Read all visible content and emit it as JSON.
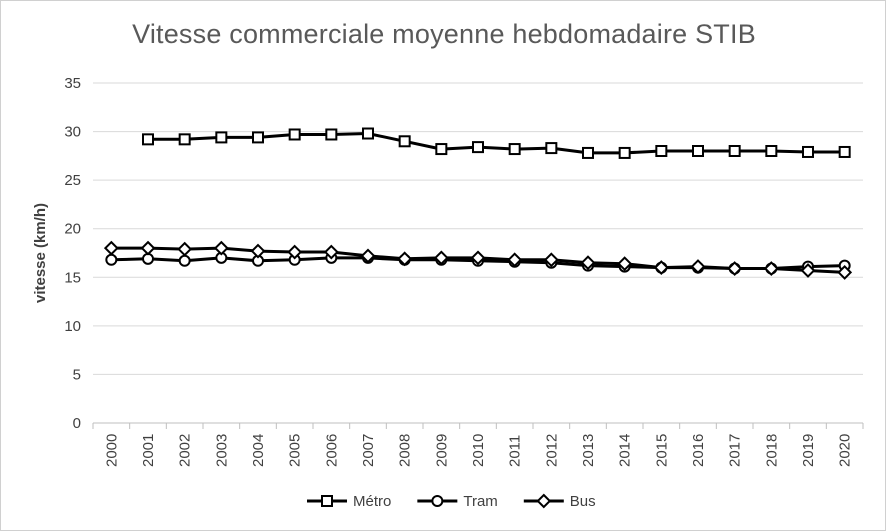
{
  "chart_data": {
    "type": "line",
    "title": "Vitesse commerciale moyenne hebdomadaire STIB",
    "xlabel": "",
    "ylabel": "vitesse (km/h)",
    "categories": [
      "2000",
      "2001",
      "2002",
      "2003",
      "2004",
      "2005",
      "2006",
      "2007",
      "2008",
      "2009",
      "2010",
      "2011",
      "2012",
      "2013",
      "2014",
      "2015",
      "2016",
      "2017",
      "2018",
      "2019",
      "2020"
    ],
    "ylim": [
      0,
      35
    ],
    "yticks": [
      0,
      5,
      10,
      15,
      20,
      25,
      30,
      35
    ],
    "grid": true,
    "legend_position": "bottom",
    "series": [
      {
        "name": "Métro",
        "marker": "square",
        "color": "#000000",
        "values": [
          null,
          29.2,
          29.2,
          29.4,
          29.4,
          29.7,
          29.7,
          29.8,
          29.0,
          28.2,
          28.4,
          28.2,
          28.3,
          27.8,
          27.8,
          28.0,
          28.0,
          28.0,
          28.0,
          27.9,
          27.9
        ]
      },
      {
        "name": "Tram",
        "marker": "circle",
        "color": "#000000",
        "values": [
          16.8,
          16.9,
          16.7,
          17.0,
          16.7,
          16.8,
          17.0,
          17.0,
          16.8,
          16.8,
          16.7,
          16.6,
          16.5,
          16.2,
          16.1,
          16.0,
          16.0,
          15.9,
          15.9,
          16.1,
          16.2
        ]
      },
      {
        "name": "Bus",
        "marker": "diamond",
        "color": "#000000",
        "values": [
          18.0,
          18.0,
          17.9,
          18.0,
          17.7,
          17.6,
          17.6,
          17.2,
          16.9,
          17.0,
          17.0,
          16.8,
          16.8,
          16.5,
          16.4,
          16.0,
          16.1,
          15.9,
          15.9,
          15.7,
          15.5
        ]
      }
    ]
  }
}
